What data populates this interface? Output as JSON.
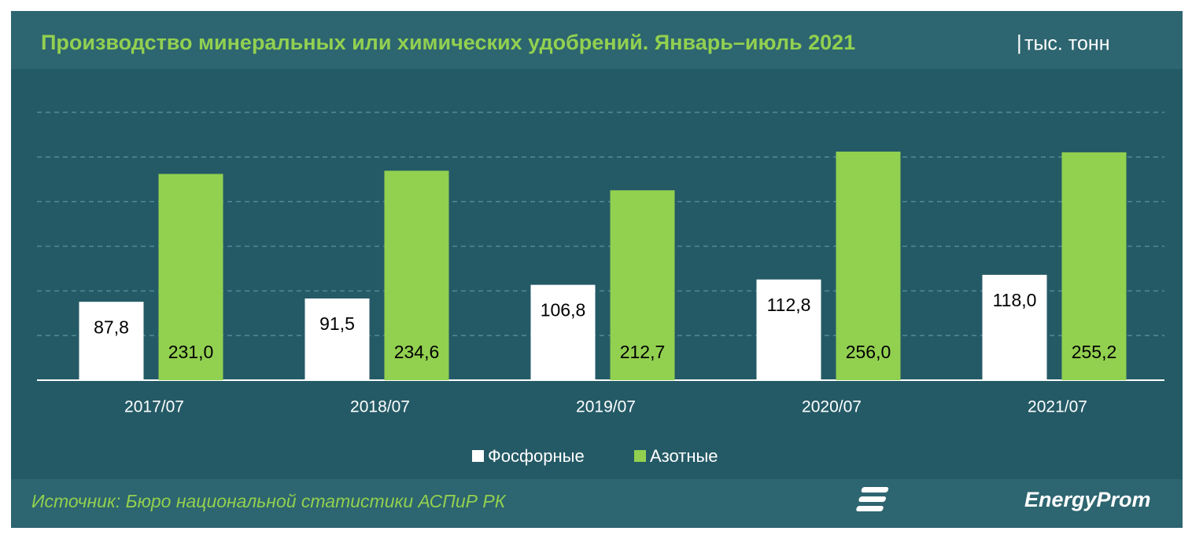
{
  "chart_data": {
    "type": "bar",
    "title": "Производство минеральных или химических удобрений. Январь–июль 2021",
    "unit": "тыс. тонн",
    "categories": [
      "2017/07",
      "2018/07",
      "2019/07",
      "2020/07",
      "2021/07"
    ],
    "series": [
      {
        "name": "Фосфорные",
        "color": "#ffffff",
        "values": [
          87.8,
          91.5,
          106.8,
          112.8,
          118.0
        ],
        "value_labels": [
          "87,8",
          "91,5",
          "106,8",
          "112,8",
          "118,0"
        ]
      },
      {
        "name": "Азотные",
        "color": "#92d050",
        "values": [
          231.0,
          234.6,
          212.7,
          256.0,
          255.2
        ],
        "value_labels": [
          "231,0",
          "234,6",
          "212,7",
          "256,0",
          "255,2"
        ]
      }
    ],
    "ylim": [
      0,
      300
    ],
    "yticks": [
      50,
      100,
      150,
      200,
      250,
      300
    ],
    "grid": true,
    "legend": "bottom",
    "source": "Источник: Бюро национальной  статистики АСПиР РК",
    "logo": "EnergyProm"
  }
}
